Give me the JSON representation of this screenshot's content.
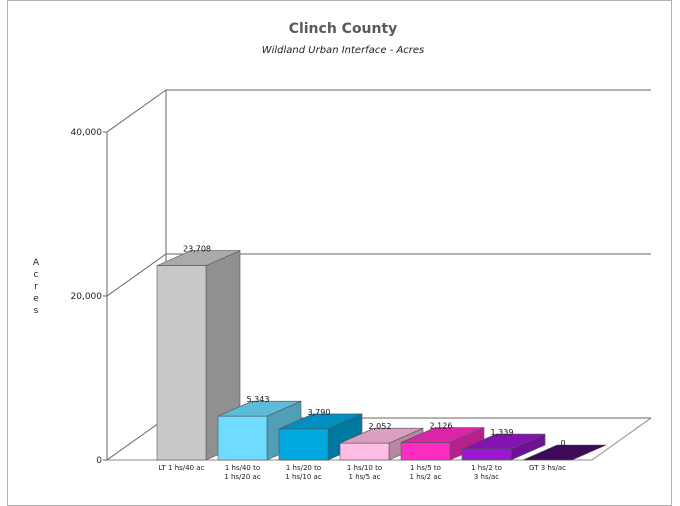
{
  "chart_data": {
    "type": "bar",
    "title": "Clinch County",
    "subtitle": "Wildland Urban Interface - Acres",
    "ylabel": "Acres",
    "xlabel": "",
    "ylim": [
      0,
      40000
    ],
    "yticks": [
      {
        "value": 0,
        "label": "0"
      },
      {
        "value": 20000,
        "label": "20,000"
      },
      {
        "value": 40000,
        "label": "40,000"
      }
    ],
    "grid": true,
    "legend": "none",
    "categories": [
      [
        "LT 1 hs/40 ac"
      ],
      [
        "1 hs/40 to",
        "1 hs/20 ac"
      ],
      [
        "1 hs/20 to",
        "1 hs/10 ac"
      ],
      [
        "1 hs/10 to",
        "1 hs/5 ac"
      ],
      [
        "1 hs/5 to",
        "1 hs/2 ac"
      ],
      [
        "1 hs/2 to",
        "3 hs/ac"
      ],
      [
        "GT 3 hs/ac"
      ]
    ],
    "values": [
      23708,
      5343,
      3790,
      2052,
      2126,
      1339,
      0
    ],
    "value_labels": [
      "23,708",
      "5,343",
      "3,790",
      "2,052",
      "2,126",
      "1,339",
      "0"
    ],
    "colors": [
      "#c8c8c8",
      "#6fdcff",
      "#00a8e0",
      "#ffbce4",
      "#ff2cc4",
      "#9a18d0",
      "#4a0a6a"
    ]
  }
}
